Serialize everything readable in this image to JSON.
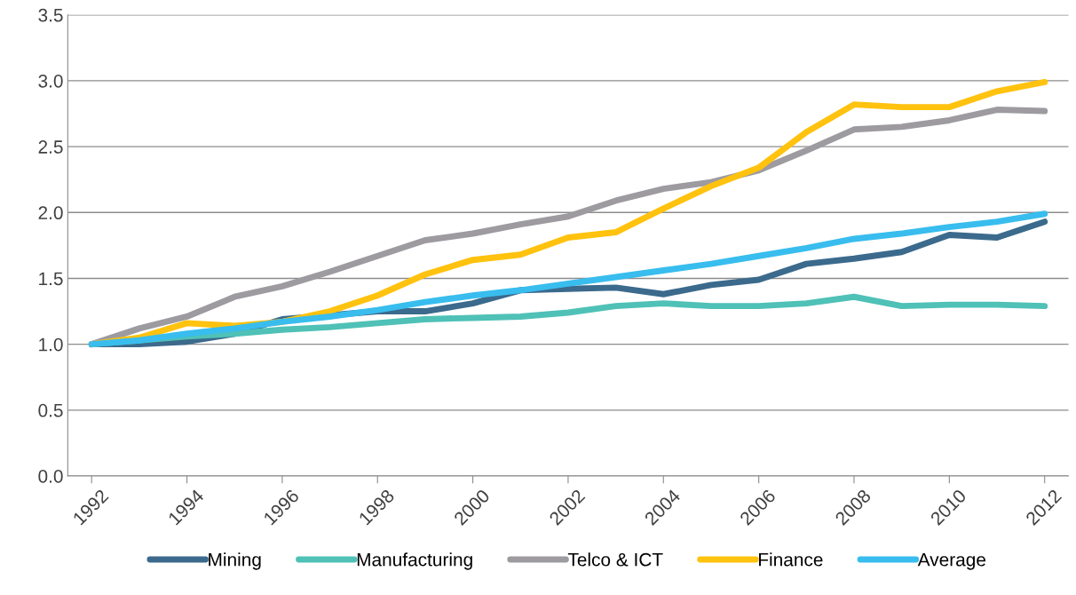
{
  "chart_data": {
    "type": "line",
    "categories": [
      "1992",
      null,
      "1994",
      null,
      "1996",
      null,
      "1998",
      null,
      "2000",
      null,
      "2002",
      null,
      "2004",
      null,
      "2006",
      null,
      "2008",
      null,
      "2010",
      null,
      "2012"
    ],
    "series": [
      {
        "name": "Mining",
        "color": "#3b6a8c",
        "values": [
          1.0,
          1.0,
          1.02,
          1.08,
          1.19,
          1.22,
          1.25,
          1.25,
          1.31,
          1.41,
          1.42,
          1.43,
          1.38,
          1.45,
          1.49,
          1.61,
          1.65,
          1.7,
          1.83,
          1.81,
          1.93
        ]
      },
      {
        "name": "Manufacturing",
        "color": "#4fc1b7",
        "values": [
          1.0,
          1.03,
          1.06,
          1.08,
          1.11,
          1.13,
          1.16,
          1.19,
          1.2,
          1.21,
          1.24,
          1.29,
          1.31,
          1.29,
          1.29,
          1.31,
          1.36,
          1.29,
          1.3,
          1.3,
          1.29
        ]
      },
      {
        "name": "Telco & ICT",
        "color": "#9d9ba0",
        "values": [
          1.0,
          1.12,
          1.21,
          1.36,
          1.44,
          1.55,
          1.67,
          1.79,
          1.84,
          1.91,
          1.97,
          2.09,
          2.18,
          2.23,
          2.32,
          2.47,
          2.63,
          2.65,
          2.7,
          2.78,
          2.77
        ]
      },
      {
        "name": "Finance",
        "color": "#ffc20e",
        "values": [
          1.0,
          1.05,
          1.16,
          1.14,
          1.17,
          1.25,
          1.37,
          1.53,
          1.64,
          1.68,
          1.81,
          1.85,
          2.03,
          2.2,
          2.34,
          2.61,
          2.82,
          2.8,
          2.8,
          2.92,
          2.99
        ]
      },
      {
        "name": "Average",
        "color": "#38bdee",
        "values": [
          1.0,
          1.03,
          1.08,
          1.12,
          1.17,
          1.21,
          1.26,
          1.32,
          1.37,
          1.41,
          1.46,
          1.51,
          1.56,
          1.61,
          1.67,
          1.73,
          1.8,
          1.84,
          1.89,
          1.93,
          1.99
        ]
      }
    ],
    "ylim": [
      0,
      3.5
    ],
    "yticks": [
      {
        "value": 0,
        "label": "0.0"
      },
      {
        "value": 0.5,
        "label": "0.5"
      },
      {
        "value": 1,
        "label": "1.0"
      },
      {
        "value": 1.5,
        "label": "1.5"
      },
      {
        "value": 2,
        "label": "2.0"
      },
      {
        "value": 2.5,
        "label": "2.5"
      },
      {
        "value": 3,
        "label": "3.0"
      },
      {
        "value": 3.5,
        "label": "3.5"
      }
    ],
    "grid": "y",
    "legend": "bottom",
    "marker": "none",
    "line_style": "solid"
  }
}
